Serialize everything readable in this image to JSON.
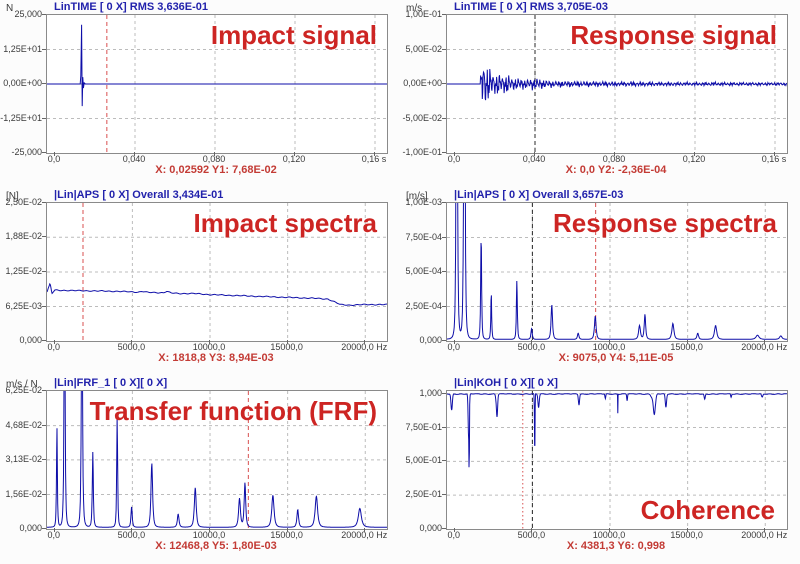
{
  "app": {
    "description": "Six-panel impact test measurement display"
  },
  "colors": {
    "trace": "#0e0ea8",
    "grid": "#bcbcbc",
    "grid_solid": "#8f8f8f",
    "cursor_red": "#d85050",
    "cursor_black": "#2a2a2a",
    "header_blue": "#2222ac",
    "title_red": "#cd2523",
    "annotation_red": "#c33b35"
  },
  "chart_data": [
    {
      "id": "impact-signal",
      "type": "line",
      "unit": "N",
      "header": "LinTIME [ 0 X] RMS 3,636E-01",
      "title": "Impact signal",
      "title_pos": "top-right",
      "annotation": "X: 0,02592  Y1: 7,68E-02",
      "xlim": [
        -0.004,
        0.166
      ],
      "ylim": [
        -25,
        25
      ],
      "solid_zero": true,
      "x_ticks": [
        {
          "v": 0,
          "label": "0,0"
        },
        {
          "v": 0.04,
          "label": "0,040"
        },
        {
          "v": 0.08,
          "label": "0,080"
        },
        {
          "v": 0.12,
          "label": "0,120"
        },
        {
          "v": 0.16,
          "label": "0,16 s"
        }
      ],
      "y_ticks": [
        {
          "v": 25,
          "label": "25,000"
        },
        {
          "v": 12.5,
          "label": "1,25E+01"
        },
        {
          "v": 0,
          "label": "0,00E+00"
        },
        {
          "v": -12.5,
          "label": "-1,25E+01"
        },
        {
          "v": -25,
          "label": "-25,000"
        }
      ],
      "cursors": [
        {
          "x": 0.02592,
          "color": "red",
          "style": "dashed"
        }
      ],
      "series": {
        "kind": "points",
        "points": [
          [
            -0.004,
            0
          ],
          [
            0.0126,
            0
          ],
          [
            0.0129,
            3
          ],
          [
            0.0133,
            21.5
          ],
          [
            0.0136,
            -8
          ],
          [
            0.0139,
            2.5
          ],
          [
            0.0142,
            -1.5
          ],
          [
            0.0146,
            0.4
          ],
          [
            0.0152,
            0
          ],
          [
            0.166,
            0
          ]
        ]
      }
    },
    {
      "id": "response-signal",
      "type": "line",
      "unit": "m/s",
      "header": "LinTIME [ 0 X] RMS 3,705E-03",
      "title": "Response signal",
      "title_pos": "top-right",
      "annotation": "X: 0,0  Y2: -2,36E-04",
      "xlim": [
        -0.004,
        0.166
      ],
      "ylim": [
        -0.1,
        0.1
      ],
      "x_ticks": [
        {
          "v": 0,
          "label": "0,0"
        },
        {
          "v": 0.04,
          "label": "0,040"
        },
        {
          "v": 0.08,
          "label": "0,080"
        },
        {
          "v": 0.12,
          "label": "0,120"
        },
        {
          "v": 0.16,
          "label": "0,16 s"
        }
      ],
      "y_ticks": [
        {
          "v": 0.1,
          "label": "1,00E-01"
        },
        {
          "v": 0.05,
          "label": "5,00E-02"
        },
        {
          "v": 0,
          "label": "0,00E+00"
        },
        {
          "v": -0.05,
          "label": "-5,00E-02"
        },
        {
          "v": -0.1,
          "label": "-1,00E-01"
        }
      ],
      "cursors": [
        {
          "x": 0.04,
          "color": "black",
          "style": "dashed"
        }
      ],
      "series": {
        "kind": "burst",
        "dt": 0.00021,
        "components": [
          [
            640,
            0.42,
            0
          ],
          [
            1490,
            0.27,
            1.2
          ],
          [
            3050,
            0.17,
            0.4
          ],
          [
            215,
            0.14,
            2.0
          ]
        ],
        "envelope": [
          [
            0,
            0
          ],
          [
            0.0127,
            0
          ],
          [
            0.0129,
            0.03
          ],
          [
            0.0132,
            0.052
          ],
          [
            0.0145,
            0.042
          ],
          [
            0.016,
            0.034
          ],
          [
            0.018,
            0.026
          ],
          [
            0.02,
            0.018
          ],
          [
            0.022,
            0.02
          ],
          [
            0.024,
            0.016
          ],
          [
            0.026,
            0.019
          ],
          [
            0.028,
            0.013
          ],
          [
            0.03,
            0.01
          ],
          [
            0.032,
            0.012
          ],
          [
            0.035,
            0.008
          ],
          [
            0.038,
            0.01
          ],
          [
            0.041,
            0.011
          ],
          [
            0.044,
            0.008
          ],
          [
            0.048,
            0.006
          ],
          [
            0.053,
            0.0055
          ],
          [
            0.06,
            0.005
          ],
          [
            0.07,
            0.0045
          ],
          [
            0.08,
            0.004
          ],
          [
            0.09,
            0.0042
          ],
          [
            0.1,
            0.0035
          ],
          [
            0.115,
            0.003
          ],
          [
            0.13,
            0.0032
          ],
          [
            0.145,
            0.0028
          ],
          [
            0.166,
            0.0026
          ]
        ]
      }
    },
    {
      "id": "impact-spectra",
      "type": "line",
      "unit": "[N]",
      "header": "|Lin|APS [ 0 X] Overall 3,434E-01",
      "title": "Impact spectra",
      "title_pos": "top-right",
      "annotation": "X: 1818,8  Y3: 8,94E-03",
      "xlim": [
        -500,
        21400
      ],
      "ylim": [
        0,
        0.025
      ],
      "x_ticks": [
        {
          "v": 0,
          "label": "0,0"
        },
        {
          "v": 5000,
          "label": "5000,0"
        },
        {
          "v": 10000,
          "label": "10000,0"
        },
        {
          "v": 15000,
          "label": "15000,0"
        },
        {
          "v": 20000,
          "label": "20000,0 Hz"
        }
      ],
      "y_ticks": [
        {
          "v": 0.025,
          "label": "2,50E-02"
        },
        {
          "v": 0.0188,
          "label": "1,88E-02"
        },
        {
          "v": 0.0125,
          "label": "1,25E-02"
        },
        {
          "v": 0.00625,
          "label": "6,25E-03"
        },
        {
          "v": 0,
          "label": "0,000"
        }
      ],
      "cursors": [
        {
          "x": 1818.8,
          "color": "red",
          "style": "dashed"
        }
      ],
      "series": {
        "kind": "points",
        "jitter": 6e-05,
        "points": [
          [
            -500,
            0.0089
          ],
          [
            -300,
            0.0104
          ],
          [
            -180,
            0.0086
          ],
          [
            0,
            0.0092
          ],
          [
            1000,
            0.00915
          ],
          [
            2000,
            0.0091
          ],
          [
            3000,
            0.00905
          ],
          [
            4000,
            0.009
          ],
          [
            5000,
            0.0089
          ],
          [
            5400,
            0.00885
          ],
          [
            5600,
            0.009
          ],
          [
            6000,
            0.0088
          ],
          [
            7000,
            0.00875
          ],
          [
            7200,
            0.009
          ],
          [
            7500,
            0.0087
          ],
          [
            8000,
            0.0086
          ],
          [
            9000,
            0.0086
          ],
          [
            10000,
            0.0084
          ],
          [
            11000,
            0.0083
          ],
          [
            12000,
            0.0082
          ],
          [
            13000,
            0.0081
          ],
          [
            14000,
            0.008
          ],
          [
            15000,
            0.0079
          ],
          [
            16000,
            0.0078
          ],
          [
            17000,
            0.0077
          ],
          [
            17600,
            0.0076
          ],
          [
            18000,
            0.0071
          ],
          [
            18400,
            0.0066
          ],
          [
            19000,
            0.0065
          ],
          [
            20000,
            0.0066
          ],
          [
            21400,
            0.0066
          ]
        ]
      }
    },
    {
      "id": "response-spectra",
      "type": "line",
      "unit": "[m/s]",
      "header": "|Lin|APS [ 0 X] Overall 3,657E-03",
      "title": "Response spectra",
      "title_pos": "top-right",
      "annotation": "X: 9075,0  Y4: 5,11E-05",
      "xlim": [
        -500,
        21400
      ],
      "ylim": [
        0,
        0.001
      ],
      "x_ticks": [
        {
          "v": 0,
          "label": "0,0"
        },
        {
          "v": 5000,
          "label": "5000,0"
        },
        {
          "v": 10000,
          "label": "10000,0"
        },
        {
          "v": 15000,
          "label": "15000,0"
        },
        {
          "v": 20000,
          "label": "20000,0 Hz"
        }
      ],
      "y_ticks": [
        {
          "v": 0.001,
          "label": "1,00E-03"
        },
        {
          "v": 0.00075,
          "label": "7,50E-04"
        },
        {
          "v": 0.0005,
          "label": "5,00E-04"
        },
        {
          "v": 0.00025,
          "label": "2,50E-04"
        },
        {
          "v": 0,
          "label": "0,000"
        }
      ],
      "cursors": [
        {
          "x": 5000,
          "color": "black",
          "style": "dashed"
        },
        {
          "x": 9075,
          "color": "red",
          "style": "dashed"
        }
      ],
      "series": {
        "kind": "peaks",
        "baseline": 1.2e-05,
        "peaks": [
          [
            130,
            0.005,
            45
          ],
          [
            620,
            0.004,
            50
          ],
          [
            1700,
            0.00075,
            45
          ],
          [
            2350,
            0.00034,
            40
          ],
          [
            4000,
            0.00043,
            45
          ],
          [
            4950,
            8e-05,
            60
          ],
          [
            6250,
            0.00025,
            70
          ],
          [
            7950,
            4.5e-05,
            70
          ],
          [
            9050,
            0.00017,
            80
          ],
          [
            11900,
            0.0001,
            90
          ],
          [
            12250,
            0.00018,
            70
          ],
          [
            14050,
            0.000115,
            100
          ],
          [
            15650,
            4.5e-05,
            80
          ],
          [
            16800,
            0.0001,
            110
          ],
          [
            19500,
            3e-05,
            150
          ],
          [
            21000,
            2.5e-05,
            120
          ]
        ]
      }
    },
    {
      "id": "transfer-function-frf",
      "type": "line",
      "unit": "m/s / N",
      "header": "|Lin|FRF_1 [ 0 X][ 0 X]",
      "title": "Transfer function (FRF)",
      "title_pos": "top-right",
      "annotation": "X: 12468,8  Y5: 1,80E-03",
      "xlim": [
        -500,
        21400
      ],
      "ylim": [
        0,
        0.0625
      ],
      "x_ticks": [
        {
          "v": 0,
          "label": "0,0"
        },
        {
          "v": 5000,
          "label": "5000,0"
        },
        {
          "v": 10000,
          "label": "10000,0"
        },
        {
          "v": 15000,
          "label": "15000,0"
        },
        {
          "v": 20000,
          "label": "20000,0 Hz"
        }
      ],
      "y_ticks": [
        {
          "v": 0.0625,
          "label": "6,25E-02"
        },
        {
          "v": 0.0468,
          "label": "4,68E-02"
        },
        {
          "v": 0.0313,
          "label": "3,13E-02"
        },
        {
          "v": 0.0156,
          "label": "1,56E-02"
        },
        {
          "v": 0,
          "label": "0,000"
        }
      ],
      "cursors": [
        {
          "x": 12468.8,
          "color": "red",
          "style": "dashed"
        }
      ],
      "series": {
        "kind": "peaks",
        "baseline": 0.0008,
        "peaks": [
          [
            140,
            0.046,
            40
          ],
          [
            630,
            0.12,
            50
          ],
          [
            1750,
            0.12,
            55
          ],
          [
            2450,
            0.034,
            50
          ],
          [
            4020,
            0.05,
            45
          ],
          [
            4950,
            0.0095,
            60
          ],
          [
            6250,
            0.029,
            80
          ],
          [
            7950,
            0.006,
            80
          ],
          [
            9050,
            0.018,
            90
          ],
          [
            11900,
            0.013,
            90
          ],
          [
            12250,
            0.02,
            75
          ],
          [
            14050,
            0.0145,
            110
          ],
          [
            15650,
            0.008,
            80
          ],
          [
            16850,
            0.014,
            120
          ],
          [
            19650,
            0.0085,
            150
          ]
        ]
      }
    },
    {
      "id": "coherence",
      "type": "line",
      "unit": "",
      "header": "|Lin|KOH [ 0 X][ 0 X]",
      "title": "Coherence",
      "title_pos": "bottom-right",
      "annotation": "X: 4381,3  Y6: 0,998",
      "xlim": [
        -500,
        21400
      ],
      "ylim": [
        0,
        1.02
      ],
      "x_ticks": [
        {
          "v": 0,
          "label": "0,0"
        },
        {
          "v": 5000,
          "label": "5000,0"
        },
        {
          "v": 10000,
          "label": "10000,0"
        },
        {
          "v": 15000,
          "label": "15000,0"
        },
        {
          "v": 20000,
          "label": "20000,0 Hz"
        }
      ],
      "y_ticks": [
        {
          "v": 1.0,
          "label": "1,000"
        },
        {
          "v": 0.75,
          "label": "7,50E-01"
        },
        {
          "v": 0.5,
          "label": "5,00E-01"
        },
        {
          "v": 0.25,
          "label": "2,50E-01"
        },
        {
          "v": 0,
          "label": "0,000"
        }
      ],
      "cursors": [
        {
          "x": 4381.3,
          "color": "red",
          "style": "dotted"
        },
        {
          "x": 5000,
          "color": "black",
          "style": "dashed"
        }
      ],
      "series": {
        "kind": "coherence",
        "dips": [
          [
            -200,
            0.88,
            60,
            0
          ],
          [
            900,
            0.66,
            50,
            0
          ],
          [
            930,
            0.49,
            12,
            0
          ],
          [
            2700,
            0.49,
            60,
            1
          ],
          [
            5150,
            0.55,
            25,
            0
          ],
          [
            5400,
            0.9,
            60,
            0
          ],
          [
            8000,
            0.92,
            50,
            0
          ],
          [
            9700,
            0.965,
            35,
            0
          ],
          [
            10500,
            0.86,
            12,
            0
          ],
          [
            11100,
            0.95,
            35,
            0
          ],
          [
            12800,
            0.72,
            120,
            1
          ],
          [
            13600,
            0.9,
            60,
            0
          ],
          [
            16100,
            0.96,
            50,
            0
          ],
          [
            17800,
            0.975,
            40,
            0
          ],
          [
            19800,
            0.975,
            60,
            0
          ]
        ]
      }
    }
  ]
}
